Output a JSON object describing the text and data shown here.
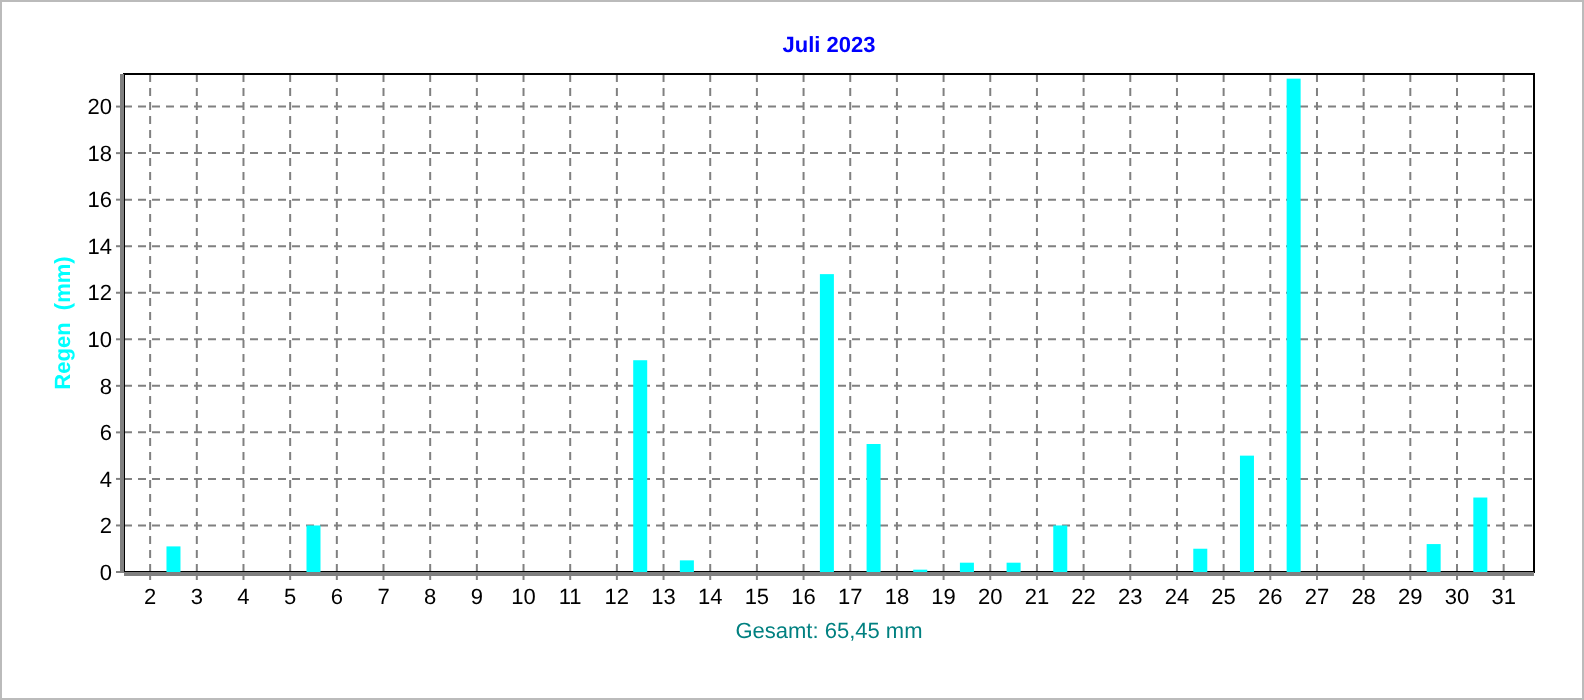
{
  "chart_data": {
    "type": "bar",
    "title": "Juli 2023",
    "ylabel": "Regen  (mm)",
    "annotations": [
      "Gesamt: 65,45 mm"
    ],
    "x": [
      1.5,
      2.5,
      3.5,
      4.5,
      5.5,
      6.5,
      7.5,
      8.5,
      9.5,
      10.5,
      11.5,
      12.5,
      13.5,
      14.5,
      15.5,
      16.5,
      17.5,
      18.5,
      19.5,
      20.5,
      21.5,
      22.5,
      23.5,
      24.5,
      25.5,
      26.5,
      27.5,
      28.5,
      29.5,
      30.5,
      31.5
    ],
    "values": [
      0,
      1.1,
      0,
      0,
      2.0,
      0,
      0,
      0,
      0,
      0,
      0,
      9.1,
      0.5,
      0,
      0,
      12.8,
      5.5,
      0.1,
      0.4,
      0.4,
      2.0,
      0,
      0,
      1.0,
      5.0,
      21.2,
      0,
      0,
      1.2,
      3.2,
      0
    ],
    "color": "#00ffff",
    "xlim": [
      1.44,
      31.65
    ],
    "xticks": [
      2,
      3,
      4,
      5,
      6,
      7,
      8,
      9,
      10,
      11,
      12,
      13,
      14,
      15,
      16,
      17,
      18,
      19,
      20,
      21,
      22,
      23,
      24,
      25,
      26,
      27,
      28,
      29,
      30,
      31
    ],
    "ylim": [
      0,
      21.4
    ],
    "yticks": [
      0,
      2,
      4,
      6,
      8,
      10,
      12,
      14,
      16,
      18,
      20
    ],
    "grid": true
  }
}
